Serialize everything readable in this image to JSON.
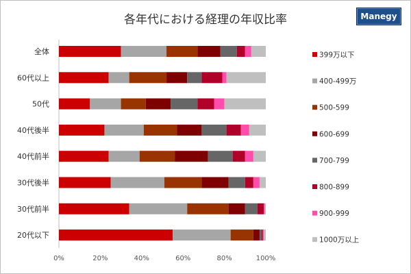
{
  "page": {
    "title": "各年代における経理の年収比率",
    "logo_text": "Manegy"
  },
  "chart_data": {
    "type": "bar",
    "orientation": "horizontal",
    "stacked": "100%",
    "title": "各年代における経理の年収比率",
    "categories": [
      "全体",
      "60代以上",
      "50代",
      "40代後半",
      "40代前半",
      "30代後半",
      "30代前半",
      "20代以下"
    ],
    "x_ticks": [
      "0%",
      "20%",
      "40%",
      "60%",
      "80%",
      "100%"
    ],
    "xlim": [
      0,
      100
    ],
    "grid": false,
    "legend_position": "right",
    "series": [
      {
        "name": "399万以下",
        "color": "#cc0000",
        "values": [
          30,
          24,
          15,
          22,
          24,
          25,
          34,
          55
        ]
      },
      {
        "name": "400-499万",
        "color": "#a6a6a6",
        "values": [
          22,
          10,
          15,
          19,
          15,
          26,
          28,
          28
        ]
      },
      {
        "name": "500-599",
        "color": "#993300",
        "values": [
          15,
          18,
          12,
          16,
          17,
          18,
          20,
          11
        ]
      },
      {
        "name": "600-699",
        "color": "#7f0000",
        "values": [
          11,
          10,
          12,
          12,
          16,
          13,
          8,
          3
        ]
      },
      {
        "name": "700-799",
        "color": "#666666",
        "values": [
          8,
          7,
          13,
          12,
          12,
          8,
          6,
          1
        ]
      },
      {
        "name": "800-899",
        "color": "#b0002a",
        "values": [
          4,
          10,
          8,
          7,
          6,
          4,
          3,
          0.5
        ]
      },
      {
        "name": "900-999",
        "color": "#ff4dac",
        "values": [
          3,
          2,
          5,
          4,
          4,
          3,
          0.5,
          0.5
        ]
      },
      {
        "name": "1000万以上",
        "color": "#bfbfbf",
        "values": [
          7,
          19,
          20,
          8,
          6,
          3,
          0.5,
          1
        ]
      }
    ]
  }
}
